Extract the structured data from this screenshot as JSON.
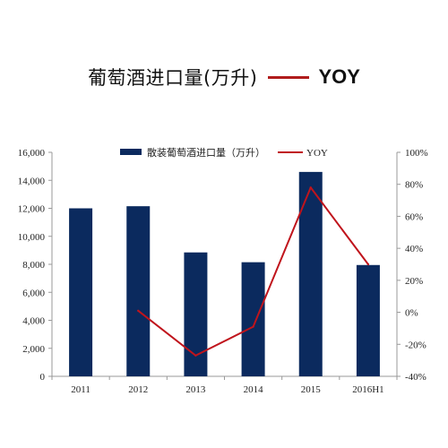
{
  "header": {
    "title": "葡萄酒进口量(万升)",
    "legend_label": "YOY"
  },
  "colors": {
    "bar": "#0b2a5e",
    "line": "#c0141c",
    "axis": "#999999"
  },
  "chart_data": {
    "type": "bar",
    "categories": [
      "2011",
      "2012",
      "2013",
      "2014",
      "2015",
      "2016H1"
    ],
    "series": [
      {
        "name": "散装葡萄酒进口量（万升）",
        "type": "bar",
        "axis": "left",
        "values": [
          12000,
          12150,
          8850,
          8150,
          14600,
          7950
        ]
      },
      {
        "name": "YOY",
        "type": "line",
        "axis": "right",
        "values": [
          null,
          0.01,
          -0.27,
          -0.09,
          0.78,
          0.3
        ]
      }
    ],
    "left_axis": {
      "min": 0,
      "max": 16000,
      "step": 2000,
      "tick_labels": [
        "0",
        "2,000",
        "4,000",
        "6,000",
        "8,000",
        "10,000",
        "12,000",
        "14,000",
        "16,000"
      ]
    },
    "right_axis": {
      "min": -0.4,
      "max": 1.0,
      "step": 0.2,
      "tick_labels": [
        "-40%",
        "-20%",
        "0%",
        "20%",
        "40%",
        "60%",
        "80%",
        "100%"
      ]
    },
    "legend": {
      "position": "top-center",
      "items": [
        "散装葡萄酒进口量（万升）",
        "YOY"
      ]
    },
    "grid": false
  }
}
